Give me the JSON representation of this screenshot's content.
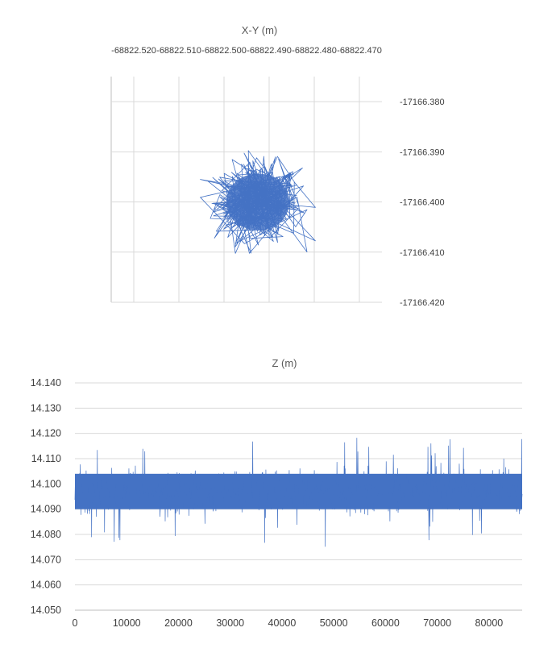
{
  "chart_data": [
    {
      "type": "scatter",
      "mode": "lines",
      "title": "X-Y (m)",
      "xlabel": "",
      "ylabel": "",
      "xlim": [
        -68822.525,
        -68822.465
      ],
      "ylim": [
        -17166.42,
        -17166.375
      ],
      "x_ticks": [
        -68822.52,
        -68822.51,
        -68822.5,
        -68822.49,
        -68822.48,
        -68822.47
      ],
      "x_tick_labels": [
        "-68822.520",
        "-68822.510",
        "-68822.500",
        "-68822.490",
        "-68822.480",
        "-68822.470"
      ],
      "y_ticks": [
        -17166.38,
        -17166.39,
        -17166.4,
        -17166.41,
        -17166.42
      ],
      "y_tick_labels": [
        "-17166.380",
        "-17166.390",
        "-17166.400",
        "-17166.410",
        "-17166.420"
      ],
      "x_axis_position": "top",
      "y_axis_position": "right",
      "grid": true,
      "color": "#4472C4",
      "series": [
        {
          "center": [
            -68822.4925,
            -17166.4
          ],
          "x_range": [
            -68822.5065,
            -68822.481
          ],
          "y_range": [
            -17166.4095,
            -17166.389
          ],
          "points": 400
        }
      ]
    },
    {
      "type": "line",
      "title": "Z (m)",
      "xlabel": "",
      "ylabel": "",
      "xlim": [
        0,
        86400
      ],
      "ylim": [
        14.05,
        14.14
      ],
      "x_ticks": [
        0,
        10000,
        20000,
        30000,
        40000,
        50000,
        60000,
        70000,
        80000
      ],
      "x_tick_labels": [
        "0",
        "10000",
        "20000",
        "30000",
        "40000",
        "50000",
        "60000",
        "70000",
        "80000"
      ],
      "y_ticks": [
        14.05,
        14.06,
        14.07,
        14.08,
        14.09,
        14.1,
        14.11,
        14.12,
        14.13,
        14.14
      ],
      "y_tick_labels": [
        "14.050",
        "14.060",
        "14.070",
        "14.080",
        "14.090",
        "14.100",
        "14.110",
        "14.120",
        "14.130",
        "14.140"
      ],
      "grid": true,
      "color": "#4472C4",
      "series": [
        {
          "mean": 14.097,
          "band": [
            14.09,
            14.104
          ],
          "min": 14.075,
          "max": 14.123,
          "samples": 1800
        }
      ]
    }
  ]
}
